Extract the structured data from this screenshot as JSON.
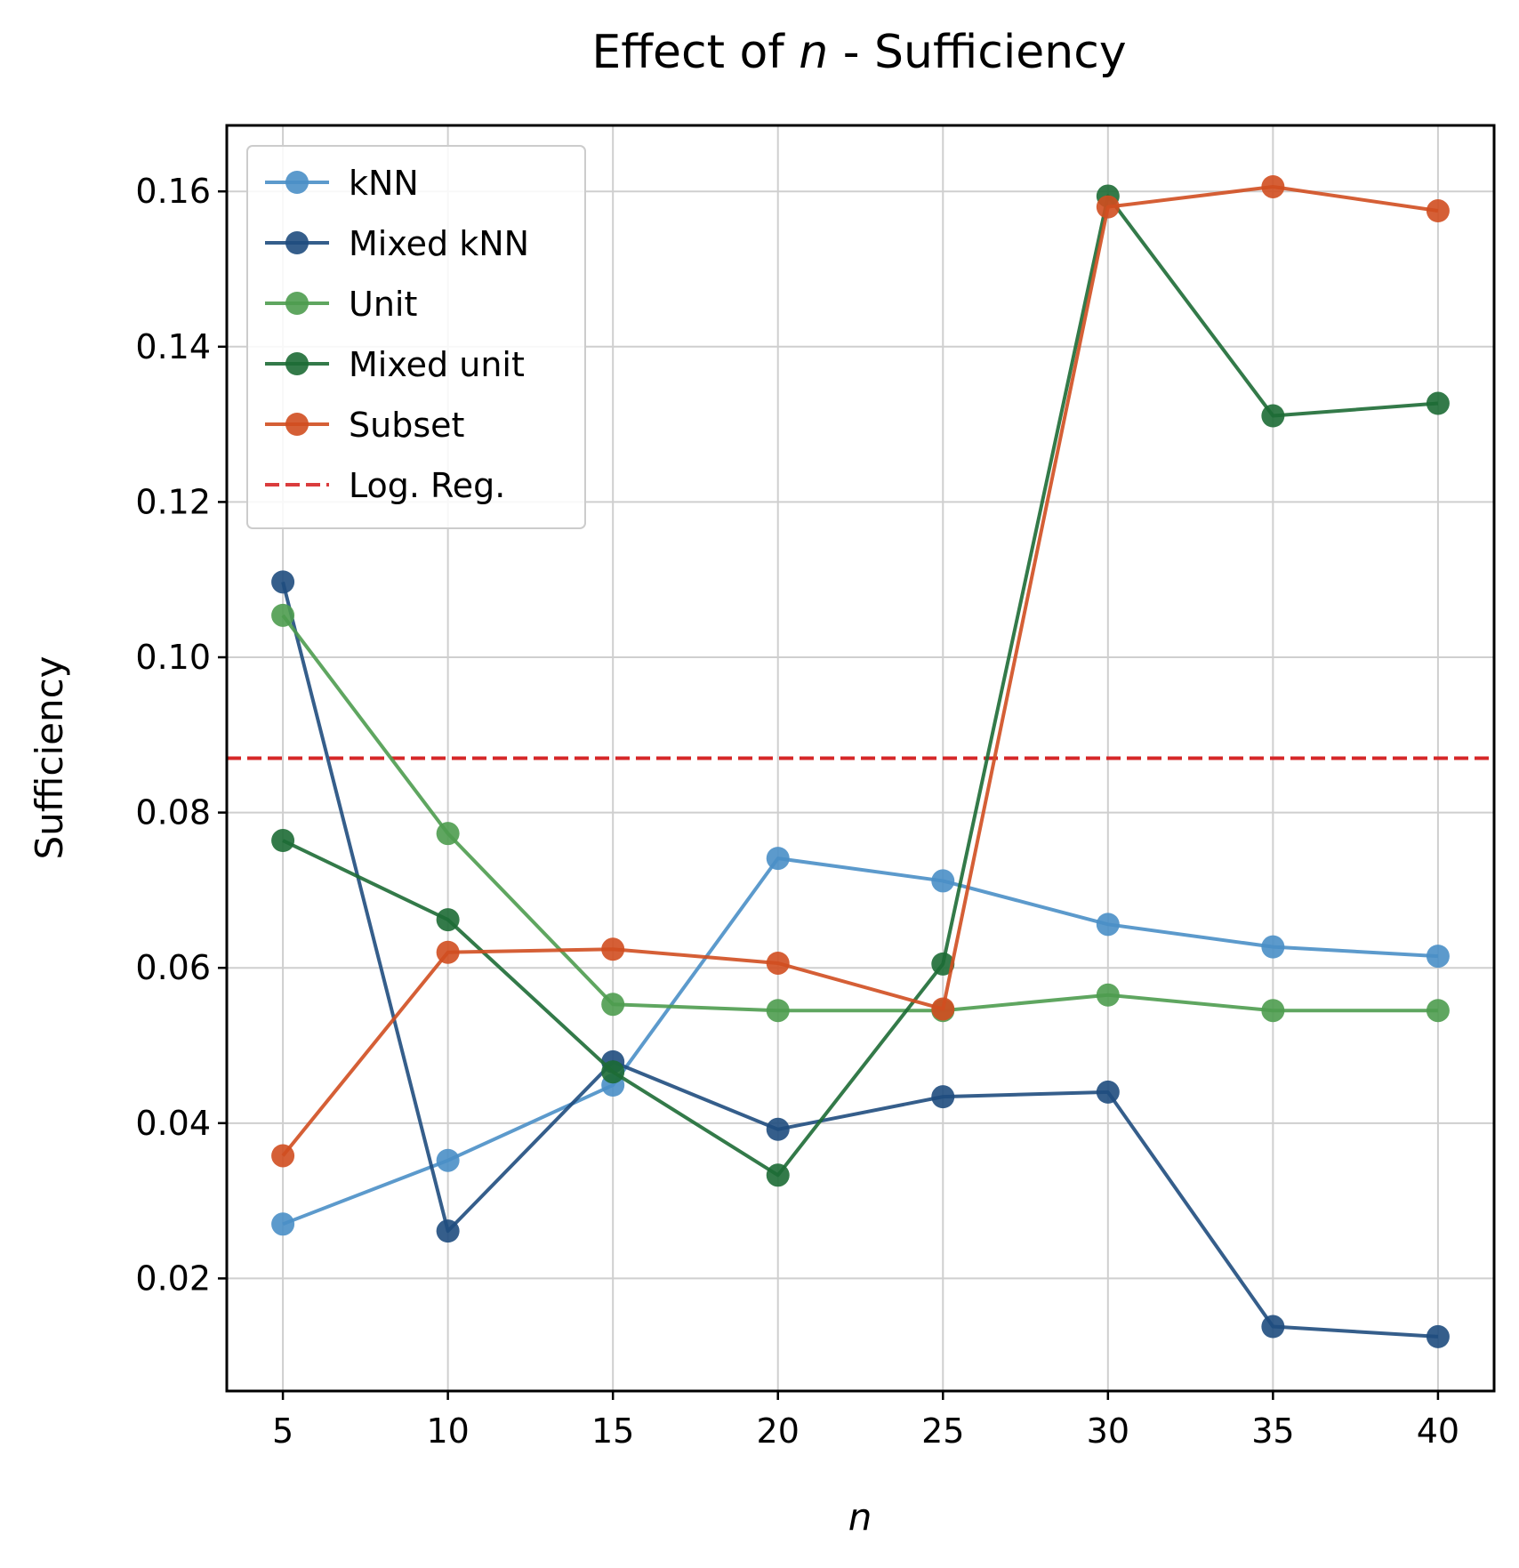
{
  "chart_data": {
    "type": "line",
    "title_prefix": "Effect of ",
    "title_var": "n",
    "title_suffix": " - Sufficiency",
    "xlabel": "n",
    "ylabel": "Sufficiency",
    "x": [
      5,
      10,
      15,
      20,
      25,
      30,
      35,
      40
    ],
    "xlim": [
      3.3,
      41.7
    ],
    "ylim": [
      0.0055,
      0.1685
    ],
    "xticks": [
      "5",
      "10",
      "15",
      "20",
      "25",
      "30",
      "35",
      "40"
    ],
    "yticks": [
      "0.02",
      "0.04",
      "0.06",
      "0.08",
      "0.10",
      "0.12",
      "0.14",
      "0.16"
    ],
    "grid": true,
    "legend_position": "upper-left",
    "series": [
      {
        "name": "kNN",
        "color": "#4a8fc7",
        "values": [
          0.027,
          0.0352,
          0.0449,
          0.0741,
          0.0712,
          0.0656,
          0.0627,
          0.0615
        ]
      },
      {
        "name": "Mixed kNN",
        "color": "#1f4c7e",
        "values": [
          0.1097,
          0.0261,
          0.0479,
          0.0392,
          0.0434,
          0.044,
          0.0138,
          0.0125
        ]
      },
      {
        "name": "Unit",
        "color": "#4e9c4f",
        "values": [
          0.1054,
          0.0773,
          0.0553,
          0.0545,
          0.0545,
          0.0565,
          0.0545,
          0.0545
        ]
      },
      {
        "name": "Mixed unit",
        "color": "#1d6b35",
        "values": [
          0.0764,
          0.0662,
          0.0466,
          0.0333,
          0.0605,
          0.1594,
          0.1311,
          0.1327
        ]
      },
      {
        "name": "Subset",
        "color": "#d04e20",
        "values": [
          0.0358,
          0.062,
          0.0624,
          0.0606,
          0.0547,
          0.158,
          0.1606,
          0.1575
        ]
      }
    ],
    "reference_lines": [
      {
        "name": "Log. Reg.",
        "color": "#d62728",
        "value": 0.087,
        "style": "dashed"
      }
    ]
  }
}
